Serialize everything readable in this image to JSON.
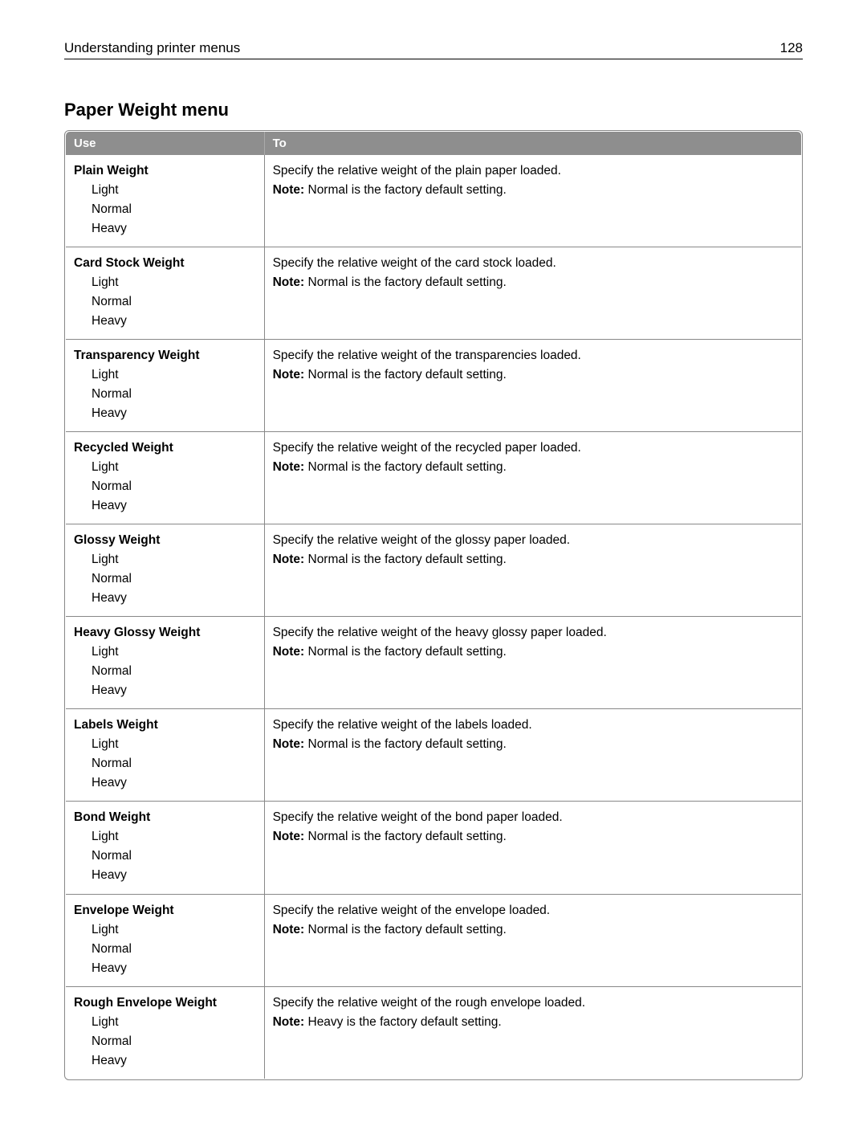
{
  "header": {
    "title": "Understanding printer menus",
    "page_number": "128"
  },
  "section_title": "Paper Weight menu",
  "table": {
    "columns": [
      "Use",
      "To"
    ],
    "note_label": "Note:",
    "rows": [
      {
        "name": "Plain Weight",
        "options": [
          "Light",
          "Normal",
          "Heavy"
        ],
        "description": "Specify the relative weight of the plain paper loaded.",
        "note": " Normal is the factory default setting."
      },
      {
        "name": "Card Stock Weight",
        "options": [
          "Light",
          "Normal",
          "Heavy"
        ],
        "description": "Specify the relative weight of the card stock loaded.",
        "note": " Normal is the factory default setting."
      },
      {
        "name": "Transparency Weight",
        "options": [
          "Light",
          "Normal",
          "Heavy"
        ],
        "description": "Specify the relative weight of the transparencies loaded.",
        "note": " Normal is the factory default setting."
      },
      {
        "name": "Recycled Weight",
        "options": [
          "Light",
          "Normal",
          "Heavy"
        ],
        "description": "Specify the relative weight of the recycled paper loaded.",
        "note": " Normal is the factory default setting."
      },
      {
        "name": "Glossy Weight",
        "options": [
          "Light",
          "Normal",
          "Heavy"
        ],
        "description": "Specify the relative weight of the glossy paper loaded.",
        "note": " Normal is the factory default setting."
      },
      {
        "name": "Heavy Glossy Weight",
        "options": [
          "Light",
          "Normal",
          "Heavy"
        ],
        "description": "Specify the relative weight of the heavy glossy paper loaded.",
        "note": " Normal is the factory default setting."
      },
      {
        "name": "Labels Weight",
        "options": [
          "Light",
          "Normal",
          "Heavy"
        ],
        "description": "Specify the relative weight of the labels loaded.",
        "note": " Normal is the factory default setting."
      },
      {
        "name": "Bond Weight",
        "options": [
          "Light",
          "Normal",
          "Heavy"
        ],
        "description": "Specify the relative weight of the bond paper loaded.",
        "note": " Normal is the factory default setting."
      },
      {
        "name": "Envelope Weight",
        "options": [
          "Light",
          "Normal",
          "Heavy"
        ],
        "description": "Specify the relative weight of the envelope loaded.",
        "note": " Normal is the factory default setting."
      },
      {
        "name": "Rough Envelope Weight",
        "options": [
          "Light",
          "Normal",
          "Heavy"
        ],
        "description": "Specify the relative weight of the rough envelope loaded.",
        "note": " Heavy is the factory default setting."
      }
    ]
  },
  "colors": {
    "header_bg": "#8e8e8e",
    "header_fg": "#ffffff",
    "border": "#888888",
    "text": "#000000",
    "page_bg": "#ffffff"
  },
  "typography": {
    "body_font": "Segoe UI, Arial, sans-serif",
    "section_title_size_pt": 17,
    "body_size_pt": 12,
    "header_size_pt": 13
  }
}
